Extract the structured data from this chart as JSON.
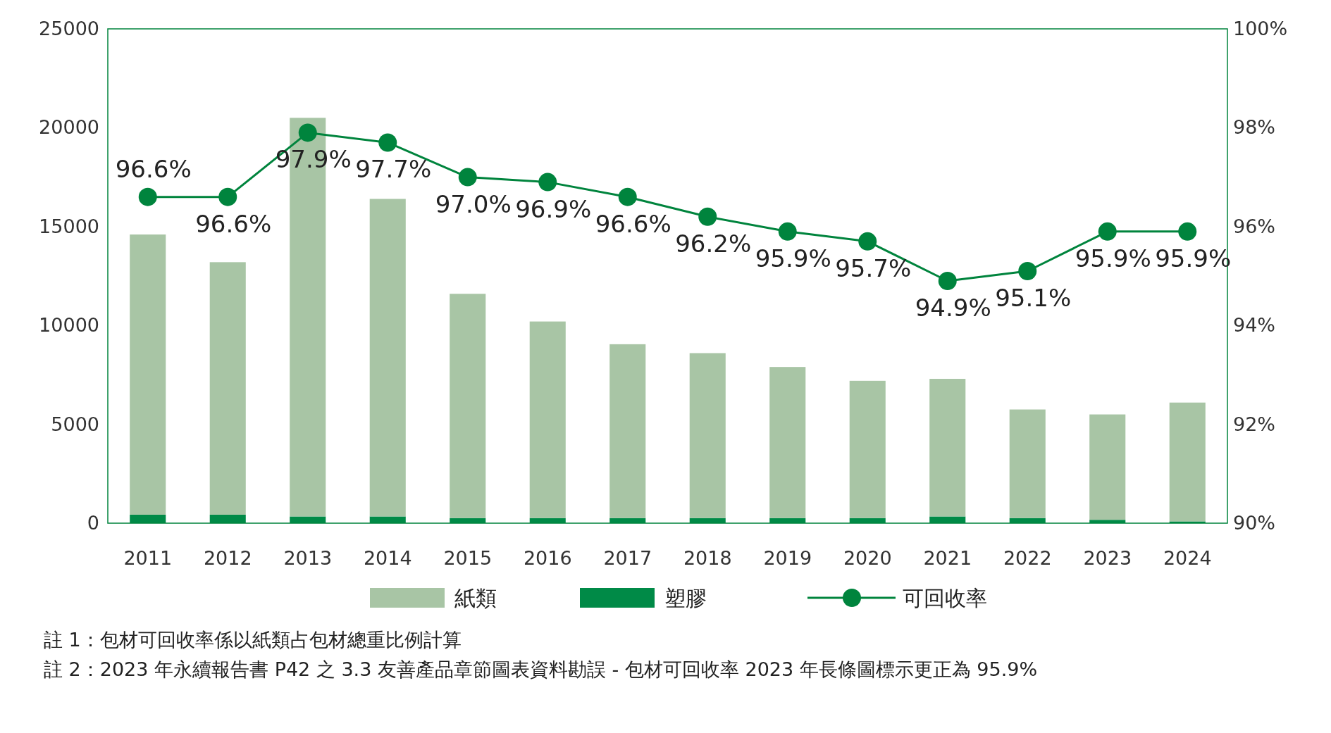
{
  "chart_data": {
    "type": "bar",
    "stacked": true,
    "categories": [
      "2011",
      "2012",
      "2013",
      "2014",
      "2015",
      "2016",
      "2017",
      "2018",
      "2019",
      "2020",
      "2021",
      "2022",
      "2023",
      "2024"
    ],
    "series": [
      {
        "name": "塑膠",
        "color": "#008a47",
        "values": [
          430,
          430,
          340,
          340,
          260,
          260,
          260,
          260,
          260,
          260,
          340,
          260,
          170,
          90
        ]
      },
      {
        "name": "紙類",
        "color": "#a8c5a5",
        "values": [
          14170,
          12770,
          20160,
          16060,
          11340,
          9940,
          8790,
          8340,
          7640,
          6940,
          6960,
          5490,
          5330,
          6010
        ]
      },
      {
        "name": "可回收率",
        "type": "line",
        "axis": "y2",
        "color": "#00843d",
        "marker": "circle",
        "values": [
          96.6,
          96.6,
          97.9,
          97.7,
          97.0,
          96.9,
          96.6,
          96.2,
          95.9,
          95.7,
          94.9,
          95.1,
          95.9,
          95.9
        ],
        "value_labels": [
          "96.6%",
          "96.6%",
          "97.9%",
          "97.7%",
          "97.0%",
          "96.9%",
          "96.6%",
          "96.2%",
          "95.9%",
          "95.7%",
          "94.9%",
          "95.1%",
          "95.9%",
          "95.9%"
        ]
      }
    ],
    "ylim": [
      0,
      25000
    ],
    "yticks": [
      0,
      5000,
      10000,
      15000,
      20000,
      25000
    ],
    "y2lim": [
      90,
      100
    ],
    "y2ticks": [
      {
        "value": 90,
        "label": "90%"
      },
      {
        "value": 92,
        "label": "92%"
      },
      {
        "value": 94,
        "label": "94%"
      },
      {
        "value": 96,
        "label": "96%"
      },
      {
        "value": 98,
        "label": "98%"
      },
      {
        "value": 100,
        "label": "100%"
      }
    ],
    "grid": false,
    "legend": "bottom",
    "annotations": [
      "註 1：包材可回收率係以紙類占包材總重比例計算",
      "註 2：2023 年永續報告書 P42 之 3.3 友善產品章節圖表資料勘誤 - 包材可回收率 2023 年長條圖標示更正為 95.9%"
    ]
  }
}
